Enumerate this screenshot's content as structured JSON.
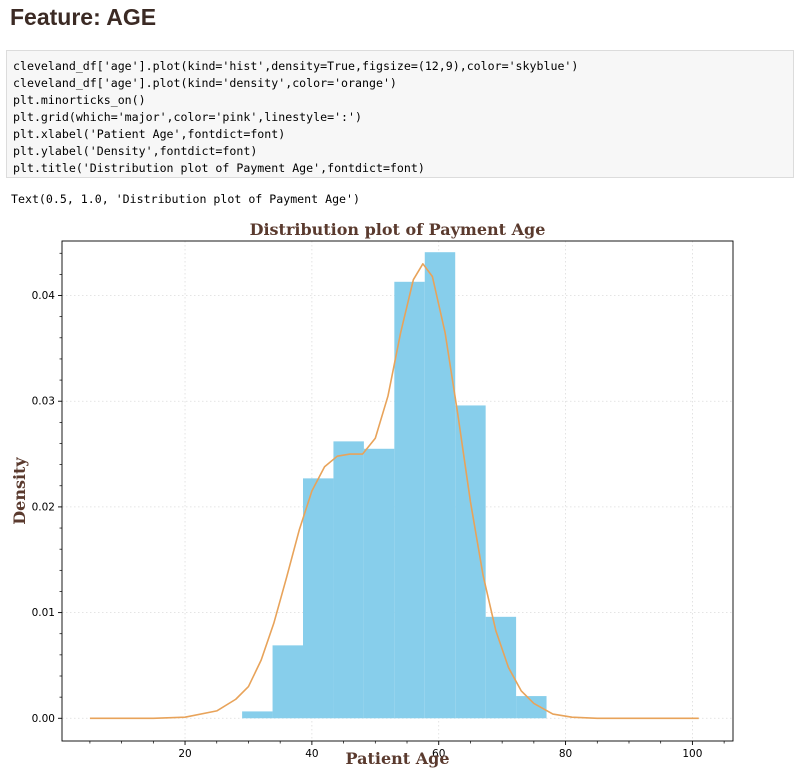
{
  "heading": "Feature: AGE",
  "code_lines": [
    "cleveland_df['age'].plot(kind='hist',density=True,figsize=(12,9),color='skyblue')",
    "cleveland_df['age'].plot(kind='density',color='orange')",
    "plt.minorticks_on()",
    "plt.grid(which='major',color='pink',linestyle=':')",
    "plt.xlabel('Patient Age',fontdict=font)",
    "plt.ylabel('Density',fontdict=font)",
    "plt.title('Distribution plot of Payment Age',fontdict=font)"
  ],
  "output_text": "Text(0.5, 1.0, 'Distribution plot of Payment Age')",
  "chart_data": {
    "type": "bar",
    "title": "Distribution plot of Payment Age",
    "xlabel": "Patient Age",
    "ylabel": "Density",
    "xlim": [
      0.6,
      106.4
    ],
    "ylim": [
      -0.00215,
      0.04516
    ],
    "xticks": [
      20,
      40,
      60,
      80,
      100
    ],
    "yticks": [
      0.0,
      0.01,
      0.02,
      0.03,
      0.04
    ],
    "ytick_labels": [
      "0.00",
      "0.01",
      "0.02",
      "0.03",
      "0.04"
    ],
    "grid": true,
    "hist_color": "#87ceeb",
    "kde_color": "#e8a35a",
    "grid_color": "#ffc0cb",
    "title_color": "#5a3a2e",
    "histogram": {
      "bin_edges": [
        29.0,
        33.8,
        38.6,
        43.4,
        48.2,
        53.0,
        57.8,
        62.6,
        67.4,
        72.2,
        77.0
      ],
      "densities": [
        0.00065,
        0.0069,
        0.0227,
        0.0262,
        0.0255,
        0.0413,
        0.0441,
        0.0296,
        0.0096,
        0.0021
      ]
    },
    "kde": {
      "x": [
        5,
        15,
        20,
        25,
        28,
        30,
        32,
        34,
        36,
        38,
        40,
        42,
        44,
        46,
        48,
        50,
        52,
        54,
        56,
        57.5,
        59,
        61,
        63,
        65,
        67,
        69,
        71,
        73,
        75,
        78,
        81,
        85,
        90,
        100,
        101
      ],
      "y": [
        0.0,
        0.0,
        0.0001,
        0.0007,
        0.0018,
        0.003,
        0.0055,
        0.009,
        0.0133,
        0.0178,
        0.0215,
        0.0238,
        0.0248,
        0.025,
        0.025,
        0.0265,
        0.0305,
        0.0365,
        0.0415,
        0.043,
        0.0418,
        0.0365,
        0.0288,
        0.0205,
        0.0135,
        0.0083,
        0.0048,
        0.0026,
        0.0014,
        0.0004,
        0.0001,
        0.0,
        0.0,
        0.0,
        0.0
      ]
    }
  }
}
